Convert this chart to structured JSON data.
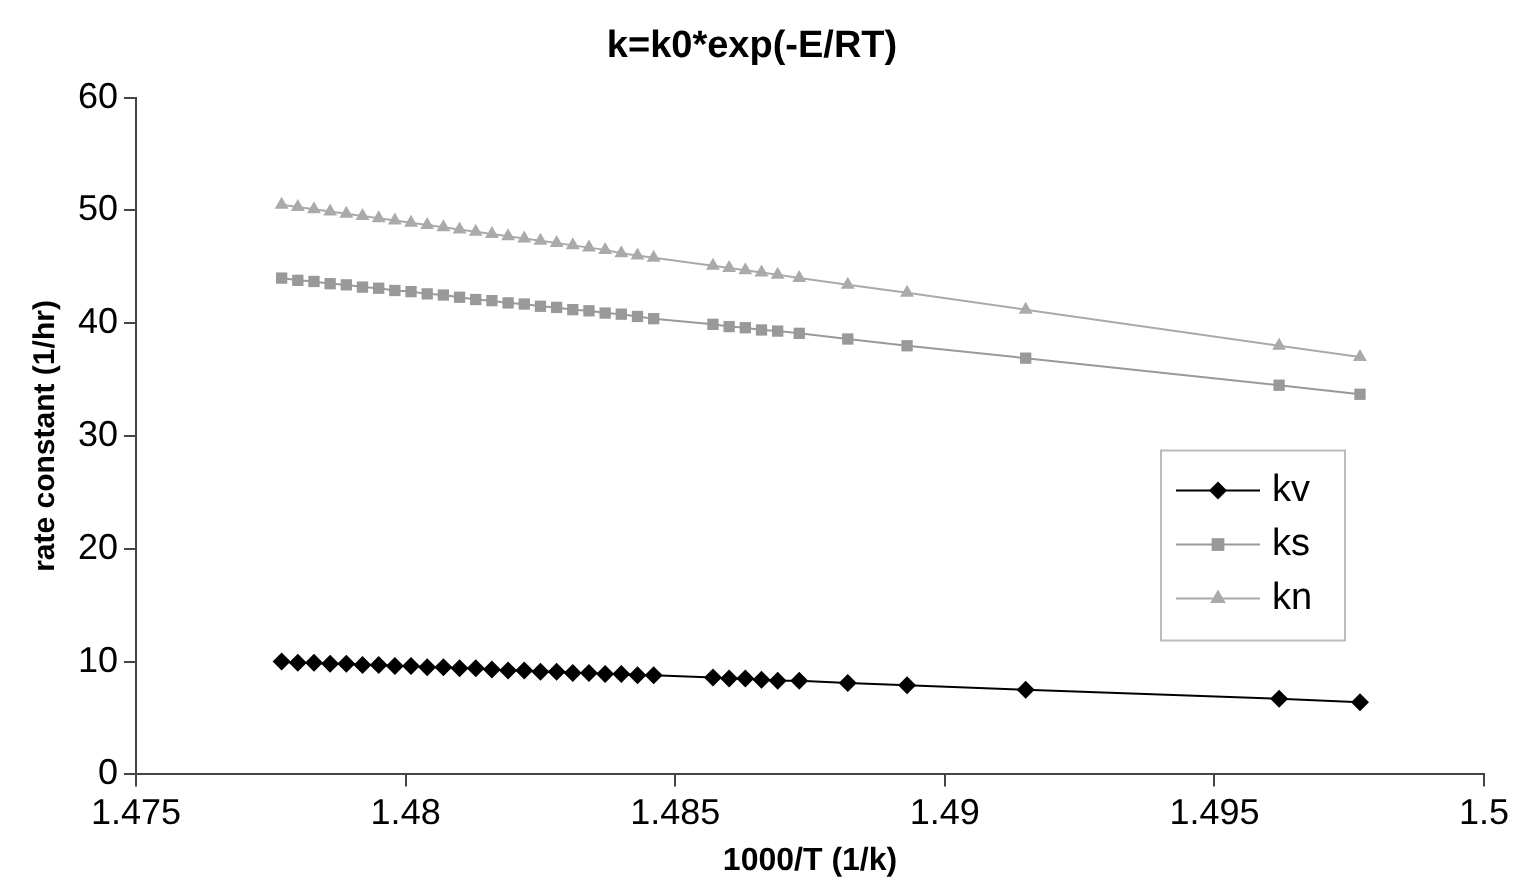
{
  "chart_data": {
    "type": "line",
    "title": "k=k0*exp(-E/RT)",
    "xlabel": "1000/T (1/k)",
    "ylabel": "rate constant (1/hr)",
    "x": [
      1.4777,
      1.478,
      1.4783,
      1.4786,
      1.4789,
      1.4792,
      1.4795,
      1.4798,
      1.4801,
      1.4804,
      1.4807,
      1.481,
      1.4813,
      1.4816,
      1.4819,
      1.4822,
      1.4825,
      1.4828,
      1.4831,
      1.4834,
      1.4837,
      1.484,
      1.4843,
      1.4846,
      1.4857,
      1.486,
      1.4863,
      1.4866,
      1.4869,
      1.4873,
      1.4882,
      1.4893,
      1.4915,
      1.4962,
      1.4977
    ],
    "series": [
      {
        "name": "kv",
        "color": "#000000",
        "marker": "diamond",
        "values": [
          10.0,
          9.9,
          9.9,
          9.8,
          9.8,
          9.7,
          9.7,
          9.6,
          9.6,
          9.5,
          9.5,
          9.4,
          9.4,
          9.3,
          9.2,
          9.2,
          9.1,
          9.1,
          9.0,
          9.0,
          8.9,
          8.9,
          8.8,
          8.8,
          8.6,
          8.5,
          8.5,
          8.4,
          8.3,
          8.3,
          8.1,
          7.9,
          7.5,
          6.7,
          6.4
        ]
      },
      {
        "name": "ks",
        "color": "#999999",
        "marker": "square",
        "values": [
          44.0,
          43.8,
          43.7,
          43.5,
          43.4,
          43.2,
          43.1,
          42.9,
          42.8,
          42.6,
          42.5,
          42.3,
          42.1,
          42.0,
          41.8,
          41.7,
          41.5,
          41.4,
          41.2,
          41.1,
          40.9,
          40.8,
          40.6,
          40.4,
          39.9,
          39.7,
          39.6,
          39.4,
          39.3,
          39.1,
          38.6,
          38.0,
          36.9,
          34.5,
          33.7
        ]
      },
      {
        "name": "kn",
        "color": "#aaaaaa",
        "marker": "triangle",
        "values": [
          50.5,
          50.3,
          50.1,
          49.9,
          49.7,
          49.5,
          49.3,
          49.1,
          48.9,
          48.7,
          48.5,
          48.3,
          48.1,
          47.9,
          47.7,
          47.5,
          47.3,
          47.1,
          46.9,
          46.7,
          46.5,
          46.2,
          46.0,
          45.8,
          45.1,
          44.9,
          44.7,
          44.5,
          44.3,
          44.0,
          43.4,
          42.7,
          41.2,
          38.0,
          37.0
        ]
      }
    ],
    "xlim": [
      1.475,
      1.5
    ],
    "xticks": [
      1.475,
      1.48,
      1.485,
      1.49,
      1.495,
      1.5
    ],
    "ylim": [
      0,
      60
    ],
    "yticks": [
      0,
      10,
      20,
      30,
      40,
      50,
      60
    ],
    "grid": false,
    "legend": "right",
    "line_style": "solid"
  }
}
